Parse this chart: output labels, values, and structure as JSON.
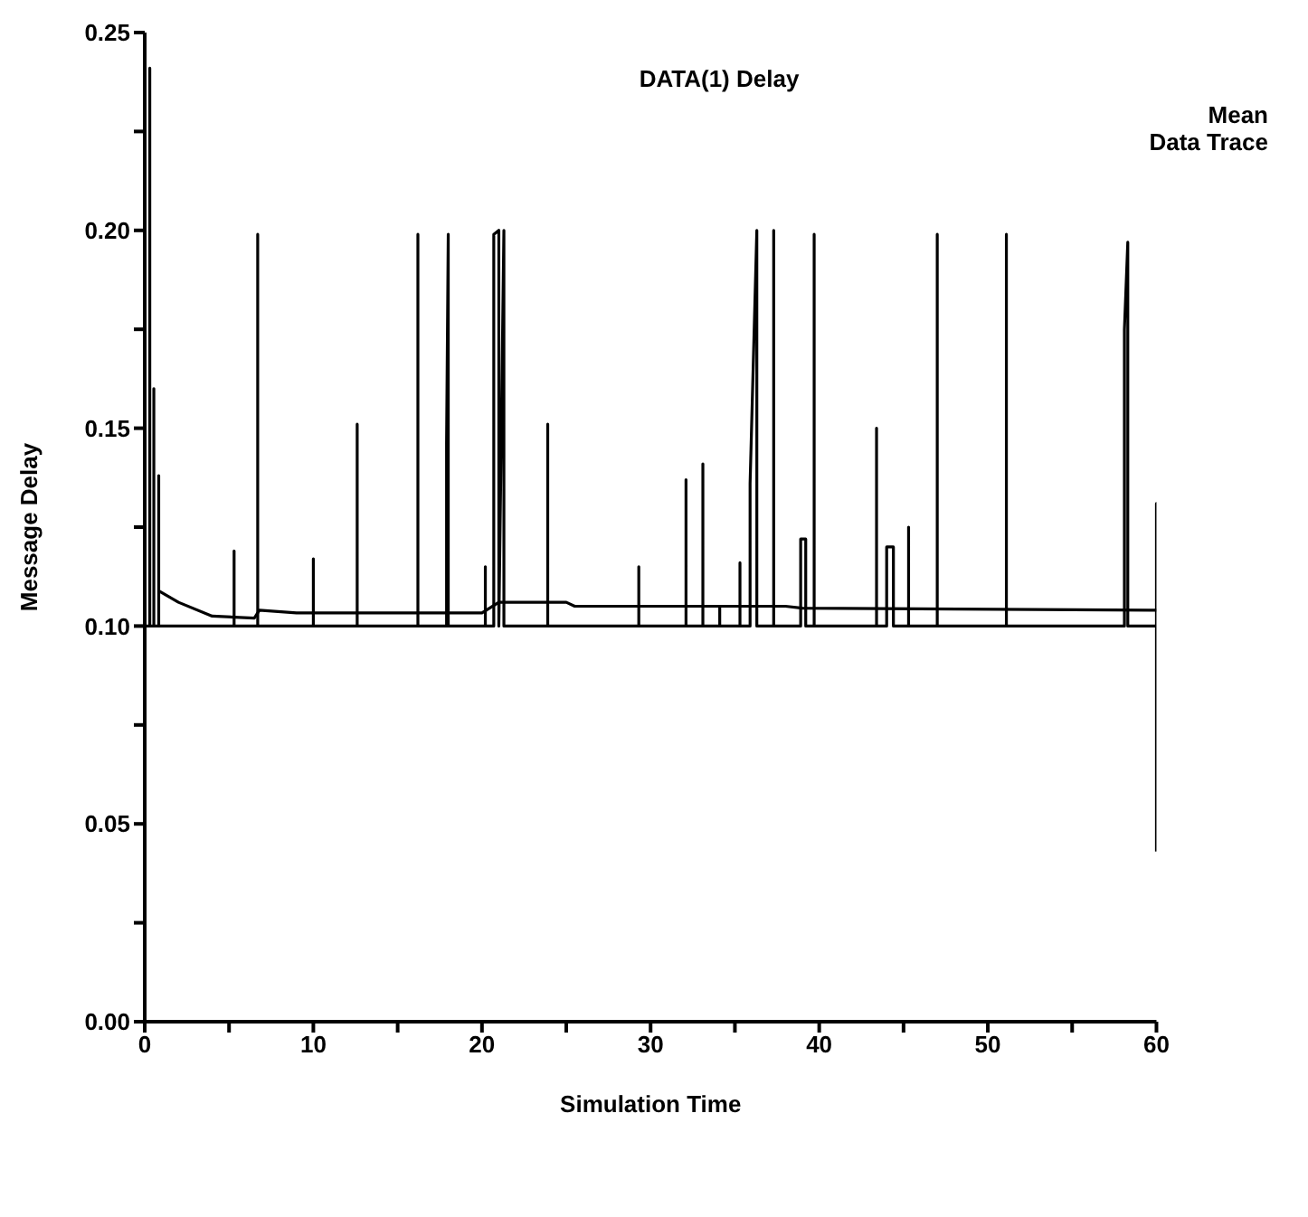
{
  "chart_data": {
    "type": "line",
    "title": "DATA(1) Delay",
    "xlabel": "Simulation Time",
    "ylabel": "Message Delay",
    "xlim": [
      0,
      60
    ],
    "ylim": [
      0,
      0.25
    ],
    "xticks": [
      0,
      {
        "value": 5,
        "label": null
      },
      10,
      {
        "value": 15,
        "label": null
      },
      20,
      {
        "value": 25,
        "label": null
      },
      30,
      {
        "value": 35,
        "label": null
      },
      40,
      {
        "value": 45,
        "label": null
      },
      50,
      {
        "value": 55,
        "label": null
      },
      60
    ],
    "yticks": [
      {
        "value": 0,
        "label": "0.00"
      },
      {
        "value": 0.025,
        "label": null
      },
      {
        "value": 0.05,
        "label": "0.05"
      },
      {
        "value": 0.075,
        "label": null
      },
      {
        "value": 0.1,
        "label": "0.10"
      },
      {
        "value": 0.125,
        "label": null
      },
      {
        "value": 0.15,
        "label": "0.15"
      },
      {
        "value": 0.175,
        "label": null
      },
      {
        "value": 0.2,
        "label": "0.20"
      },
      {
        "value": 0.225,
        "label": null
      },
      {
        "value": 0.25,
        "label": "0.25"
      }
    ],
    "legend": "top right",
    "marker": "none",
    "line_style": "solid",
    "series": [
      {
        "name": "Mean",
        "color": "#000000",
        "x": [
          0.8,
          2,
          4,
          6.5,
          6.8,
          9,
          20,
          21,
          25,
          25.5,
          38,
          39,
          60
        ],
        "values": [
          0.109,
          0.106,
          0.1025,
          0.102,
          0.104,
          0.1033,
          0.1033,
          0.106,
          0.106,
          0.105,
          0.105,
          0.1045,
          0.104
        ]
      },
      {
        "name": "Data Trace",
        "color": "#000000",
        "x": [
          0,
          0.3,
          0.3,
          0.3,
          0.54,
          0.54,
          0.54,
          0.83,
          0.83,
          0.83,
          5.3,
          5.3,
          5.3,
          6.7,
          6.7,
          6.7,
          10,
          10,
          10,
          12.6,
          12.6,
          12.6,
          16.2,
          16.2,
          16.2,
          17.9,
          17.9,
          18,
          18,
          18,
          20.2,
          20.2,
          20.2,
          20.7,
          20.7,
          21,
          21,
          21.3,
          21.3,
          21.3,
          23.9,
          23.9,
          23.9,
          29.3,
          29.3,
          29.3,
          32.1,
          32.1,
          32.1,
          33.1,
          33.1,
          33.1,
          34.1,
          34.1,
          34.1,
          35.3,
          35.3,
          35.3,
          35.9,
          35.9,
          36.3,
          36.3,
          36.3,
          37.3,
          37.3,
          37.3,
          38.9,
          38.9,
          39.2,
          39.2,
          39.7,
          39.7,
          39.7,
          43.4,
          43.4,
          43.4,
          44,
          44,
          44.4,
          44.4,
          44.4,
          45.3,
          45.3,
          45.3,
          47,
          47,
          47,
          51.1,
          51.1,
          51.1,
          58.1,
          58.1,
          58.3,
          58.3,
          58.3,
          60,
          60,
          60
        ],
        "values": [
          0.1,
          0.1,
          0.241,
          0.1,
          0.1,
          0.16,
          0.1,
          0.1,
          0.138,
          0.1,
          0.1,
          0.119,
          0.1,
          0.1,
          0.199,
          0.1,
          0.1,
          0.117,
          0.1,
          0.1,
          0.151,
          0.1,
          0.1,
          0.199,
          0.1,
          0.1,
          0.146,
          0.199,
          0.1,
          0.1,
          0.1,
          0.115,
          0.1,
          0.1,
          0.199,
          0.2,
          0.1,
          0.2,
          0.2,
          0.1,
          0.1,
          0.151,
          0.1,
          0.1,
          0.115,
          0.1,
          0.1,
          0.137,
          0.1,
          0.1,
          0.141,
          0.1,
          0.1,
          0.105,
          0.1,
          0.1,
          0.116,
          0.1,
          0.1,
          0.136,
          0.2,
          0.2,
          0.1,
          0.1,
          0.2,
          0.1,
          0.1,
          0.122,
          0.122,
          0.1,
          0.1,
          0.199,
          0.1,
          0.1,
          0.15,
          0.1,
          0.1,
          0.12,
          0.12,
          0.12,
          0.1,
          0.1,
          0.125,
          0.1,
          0.1,
          0.199,
          0.1,
          0.1,
          0.199,
          0.1,
          0.1,
          0.175,
          0.197,
          0.197,
          0.1,
          0.1,
          0.131,
          0.043
        ]
      }
    ]
  }
}
